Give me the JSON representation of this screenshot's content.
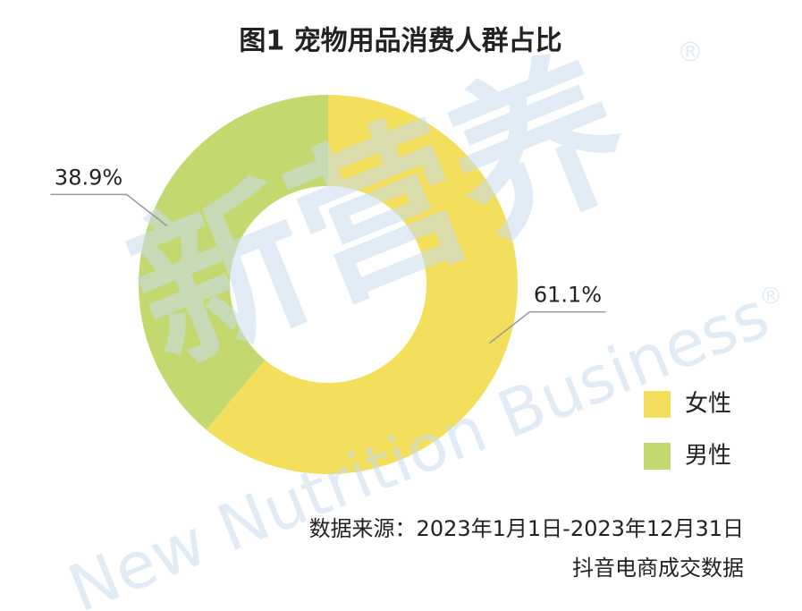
{
  "chart_data": {
    "type": "donut",
    "title": "图1 宠物用品消费人群占比",
    "categories": [
      "女性",
      "男性"
    ],
    "values": [
      61.1,
      38.9
    ],
    "value_labels": [
      "61.1%",
      "38.9%"
    ],
    "colors": [
      "#f4df5c",
      "#c3d970"
    ],
    "source": [
      "数据来源：2023年1月1日-2023年12月31日",
      "抖音电商成交数据"
    ],
    "watermark": {
      "logo": "新营养",
      "text": "New Nutrition Business",
      "mark": "®"
    }
  }
}
